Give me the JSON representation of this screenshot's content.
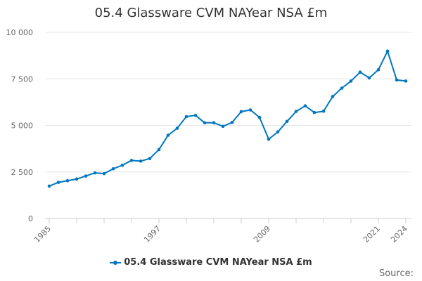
{
  "chart_data": {
    "type": "line",
    "title": "05.4 Glassware CVM NAYear NSA £m",
    "xlabel": "",
    "ylabel": "",
    "x": [
      1985,
      1986,
      1987,
      1988,
      1989,
      1990,
      1991,
      1992,
      1993,
      1994,
      1995,
      1996,
      1997,
      1998,
      1999,
      2000,
      2001,
      2002,
      2003,
      2004,
      2005,
      2006,
      2007,
      2008,
      2009,
      2010,
      2011,
      2012,
      2013,
      2014,
      2015,
      2016,
      2017,
      2018,
      2019,
      2020,
      2021,
      2022,
      2023,
      2024
    ],
    "series": [
      {
        "name": "05.4 Glassware CVM NAYear NSA £m",
        "color": "#0077c0",
        "values": [
          1740,
          1940,
          2030,
          2120,
          2280,
          2450,
          2410,
          2670,
          2860,
          3120,
          3080,
          3220,
          3700,
          4470,
          4850,
          5470,
          5540,
          5140,
          5140,
          4950,
          5160,
          5740,
          5830,
          5430,
          4260,
          4650,
          5210,
          5750,
          6050,
          5690,
          5760,
          6550,
          7000,
          7380,
          7860,
          7550,
          7990,
          8990,
          7440,
          7380
        ]
      }
    ],
    "ylim": [
      0,
      10000
    ],
    "yticks": [
      0,
      2500,
      5000,
      7500,
      10000
    ],
    "ytick_labels": [
      "0",
      "2 500",
      "5 000",
      "7 500",
      "10 000"
    ],
    "xtick_labels": [
      "1985",
      "1997",
      "2009",
      "2021",
      "2024"
    ],
    "grid": "horizontal",
    "legend": "bottom"
  },
  "source_label": "Source:"
}
